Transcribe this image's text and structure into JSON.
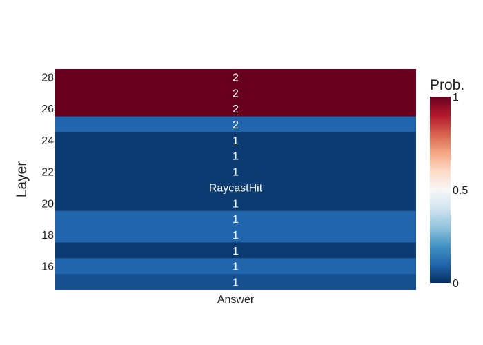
{
  "chart_data": {
    "type": "heatmap",
    "x_categories": [
      "Answer"
    ],
    "y_values": [
      28,
      27,
      26,
      25,
      24,
      23,
      22,
      21,
      20,
      19,
      18,
      17,
      16,
      15
    ],
    "cell_text": [
      "2",
      "2",
      "2",
      "2",
      "1",
      "1",
      "1",
      "RaycastHit",
      "1",
      "1",
      "1",
      "1",
      "1",
      "1"
    ],
    "probabilities": [
      1.0,
      1.0,
      1.0,
      0.1,
      0.02,
      0.02,
      0.02,
      0.02,
      0.02,
      0.1,
      0.1,
      0.02,
      0.1,
      0.06
    ],
    "ylabel": "Layer",
    "xlabel": "",
    "y_ticks": [
      16,
      18,
      20,
      22,
      24,
      26,
      28
    ],
    "colorbar": {
      "title": "Prob.",
      "range": [
        0,
        1
      ],
      "ticks": [
        "0",
        "0.5",
        "1"
      ],
      "tick_values": [
        0,
        0.5,
        1
      ],
      "colorscale": [
        [
          0.0,
          "#053061"
        ],
        [
          0.1,
          "#2166ac"
        ],
        [
          0.2,
          "#4393c3"
        ],
        [
          0.3,
          "#92c5de"
        ],
        [
          0.4,
          "#d1e5f0"
        ],
        [
          0.5,
          "#f7f7f7"
        ],
        [
          0.6,
          "#fddbc7"
        ],
        [
          0.7,
          "#f4a582"
        ],
        [
          0.8,
          "#d6604d"
        ],
        [
          0.9,
          "#b2182b"
        ],
        [
          1.0,
          "#67001f"
        ]
      ]
    }
  }
}
